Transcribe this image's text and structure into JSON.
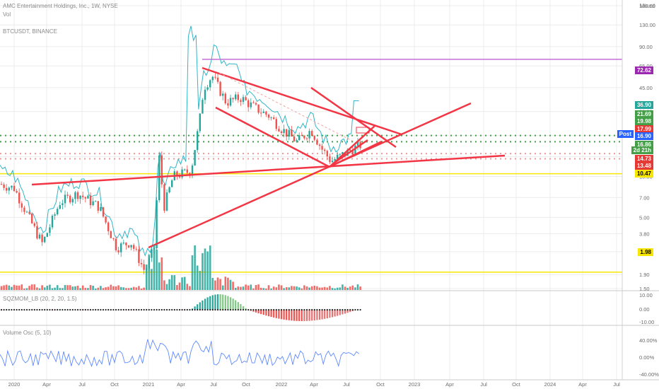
{
  "legend": {
    "symbol_line": "AMC Entertainment Holdings, Inc., 1W, NYSE",
    "vol": "Vol",
    "sqzmom": "SQZMOM_LB (20, 2, 20, 1.5)",
    "volosc": "Volume Osc (5, 10)",
    "btc": "BTCUSDT, BINANCE"
  },
  "scale_mode": "Mixed",
  "chart_data": {
    "type": "candlestick",
    "yscale": "log",
    "ylim": [
      1.5,
      180
    ],
    "x_ticks": [
      "2020",
      "Apr",
      "Jul",
      "Oct",
      "2021",
      "Apr",
      "Jul",
      "Oct",
      "2022",
      "Apr",
      "Jul",
      "Oct",
      "2023",
      "Apr",
      "Jul",
      "Oct",
      "2024",
      "Apr",
      "Jul"
    ],
    "y_ticks": [
      "180.00",
      "130.00",
      "90.00",
      "65.00",
      "45.00",
      "30.00",
      "20.00",
      "14.00",
      "10.00",
      "7.00",
      "5.00",
      "3.80",
      "2.80",
      "1.90",
      "1.50"
    ],
    "price_tags": [
      {
        "value": "72.62",
        "color": "#9c27b0"
      },
      {
        "value": "36.90",
        "color": "#26a69a"
      },
      {
        "value": "21.69",
        "color": "#43a047"
      },
      {
        "value": "19.98",
        "color": "#43a047"
      },
      {
        "value": "17.99",
        "color": "#e53935"
      },
      {
        "value": "16.90",
        "color": "#2962ff"
      },
      {
        "value": "16.86",
        "color": "#43a047"
      },
      {
        "value": "2d 21h",
        "color": "#43a047"
      },
      {
        "value": "14.73",
        "color": "#e53935"
      },
      {
        "value": "13.48",
        "color": "#e53935"
      },
      {
        "value": "10.47",
        "color": "#f7e600"
      },
      {
        "value": "1.98",
        "color": "#f7e600"
      }
    ],
    "post_label": "Post",
    "osc1_ticks": [
      "10.00",
      "0.00",
      "-10.00"
    ],
    "osc2_ticks": [
      "40.00%",
      "0.00%",
      "-40.00%"
    ],
    "horizontal_levels": [
      {
        "value": 72.62,
        "color": "#c46fd4",
        "style": "solid"
      },
      {
        "value": 19.98,
        "color": "#43a047",
        "style": "dotted"
      },
      {
        "value": 17.99,
        "color": "#43a047",
        "style": "dotted"
      },
      {
        "value": 14.73,
        "color": "#ef9a9a",
        "style": "dotted"
      },
      {
        "value": 13.48,
        "color": "#ef9a9a",
        "style": "dotted"
      },
      {
        "value": 10.47,
        "color": "#f7e600",
        "style": "solid"
      },
      {
        "value": 1.98,
        "color": "#f7e600",
        "style": "solid"
      }
    ]
  }
}
